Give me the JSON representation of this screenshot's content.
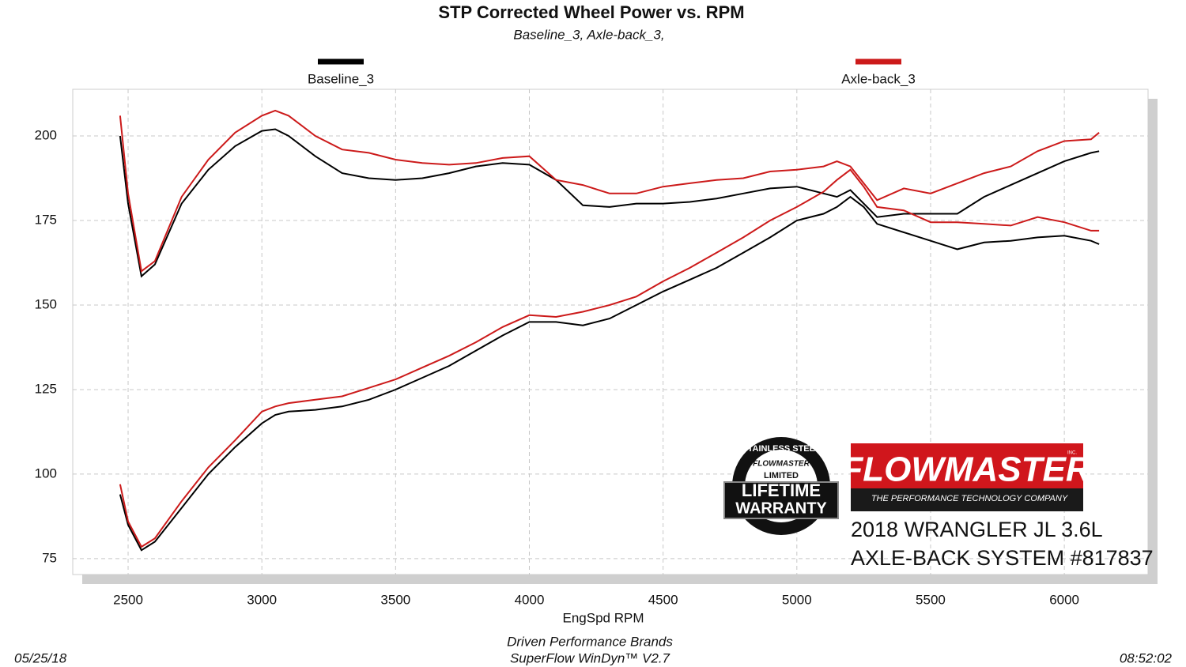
{
  "chart_data": {
    "type": "line",
    "title": "STP Corrected Wheel Power vs. RPM",
    "subtitle": "Baseline_3, Axle-back_3,",
    "x_label": "EngSpd  RPM",
    "footer": [
      "Driven Performance Brands",
      "SuperFlow WinDyn™ V2.7"
    ],
    "date": "05/25/18",
    "time": "08:52:02",
    "grid": true,
    "xlim": [
      2293,
      6313
    ],
    "ylim": [
      70.3,
      213.8
    ],
    "xticks": [
      2500,
      3000,
      3500,
      4000,
      4500,
      5000,
      5500,
      6000
    ],
    "yticks": [
      75,
      100,
      125,
      150,
      175,
      200
    ],
    "x": [
      2470,
      2500,
      2550,
      2600,
      2700,
      2800,
      2900,
      3000,
      3050,
      3100,
      3200,
      3300,
      3400,
      3500,
      3600,
      3700,
      3800,
      3900,
      4000,
      4100,
      4200,
      4300,
      4400,
      4500,
      4600,
      4700,
      4800,
      4900,
      5000,
      5100,
      5150,
      5200,
      5250,
      5300,
      5400,
      5500,
      5600,
      5700,
      5800,
      5900,
      6000,
      6100,
      6130
    ],
    "series": [
      {
        "name": "Baseline_3",
        "color": "#000000",
        "lines": [
          [
            200,
            180,
            158.5,
            162,
            180,
            190,
            197,
            201.5,
            202,
            200,
            194,
            189,
            187.5,
            187,
            187.5,
            189,
            191,
            192,
            191.5,
            187,
            179.5,
            179,
            180,
            180,
            180.5,
            181.5,
            183,
            184.5,
            185,
            183,
            182,
            184,
            180,
            176,
            177,
            177,
            177,
            182,
            185.5,
            189,
            192.5,
            195,
            195.5
          ],
          [
            94,
            85,
            77.5,
            80,
            90,
            100,
            108,
            115,
            117.5,
            118.5,
            119,
            120,
            122,
            125,
            128.5,
            132,
            136.5,
            141,
            145,
            145,
            144,
            146,
            150,
            154,
            157.5,
            161,
            165.5,
            170,
            175,
            177,
            179,
            182,
            179,
            174,
            171.5,
            169,
            166.5,
            168.5,
            169,
            170,
            170.5,
            169,
            168
          ]
        ]
      },
      {
        "name": "Axle-back_3",
        "color": "#cc1a1a",
        "lines": [
          [
            206,
            183,
            160,
            163,
            182,
            193,
            201,
            206,
            207.5,
            206,
            200,
            196,
            195,
            193,
            192,
            191.5,
            192,
            193.5,
            194,
            187,
            185.5,
            183,
            183,
            185,
            186,
            187,
            187.5,
            189.5,
            190,
            191,
            192.5,
            191,
            186,
            181,
            184.5,
            183,
            186,
            189,
            191,
            195.5,
            198.5,
            199,
            201
          ],
          [
            97,
            86,
            78.5,
            81,
            92,
            102,
            110,
            118.5,
            120,
            121,
            122,
            123,
            125.5,
            128,
            131.5,
            135,
            139,
            143.5,
            147,
            146.5,
            148,
            150,
            152.5,
            157,
            161,
            165.5,
            170,
            175,
            179,
            183.5,
            187,
            190,
            185,
            179,
            178,
            174.5,
            174.5,
            174,
            173.5,
            176,
            174.5,
            172,
            172
          ]
        ]
      }
    ],
    "badge": [
      "STAINLESS STEEL",
      "FLOWMASTER",
      "LIMITED",
      "LIFETIME",
      "WARRANTY"
    ],
    "logo": {
      "brand": "FLOWMASTER",
      "mark": "INC.",
      "tagline": "THE PERFORMANCE TECHNOLOGY COMPANY",
      "lines": [
        "2018 WRANGLER JL 3.6L",
        "AXLE-BACK SYSTEM #817837"
      ]
    }
  }
}
